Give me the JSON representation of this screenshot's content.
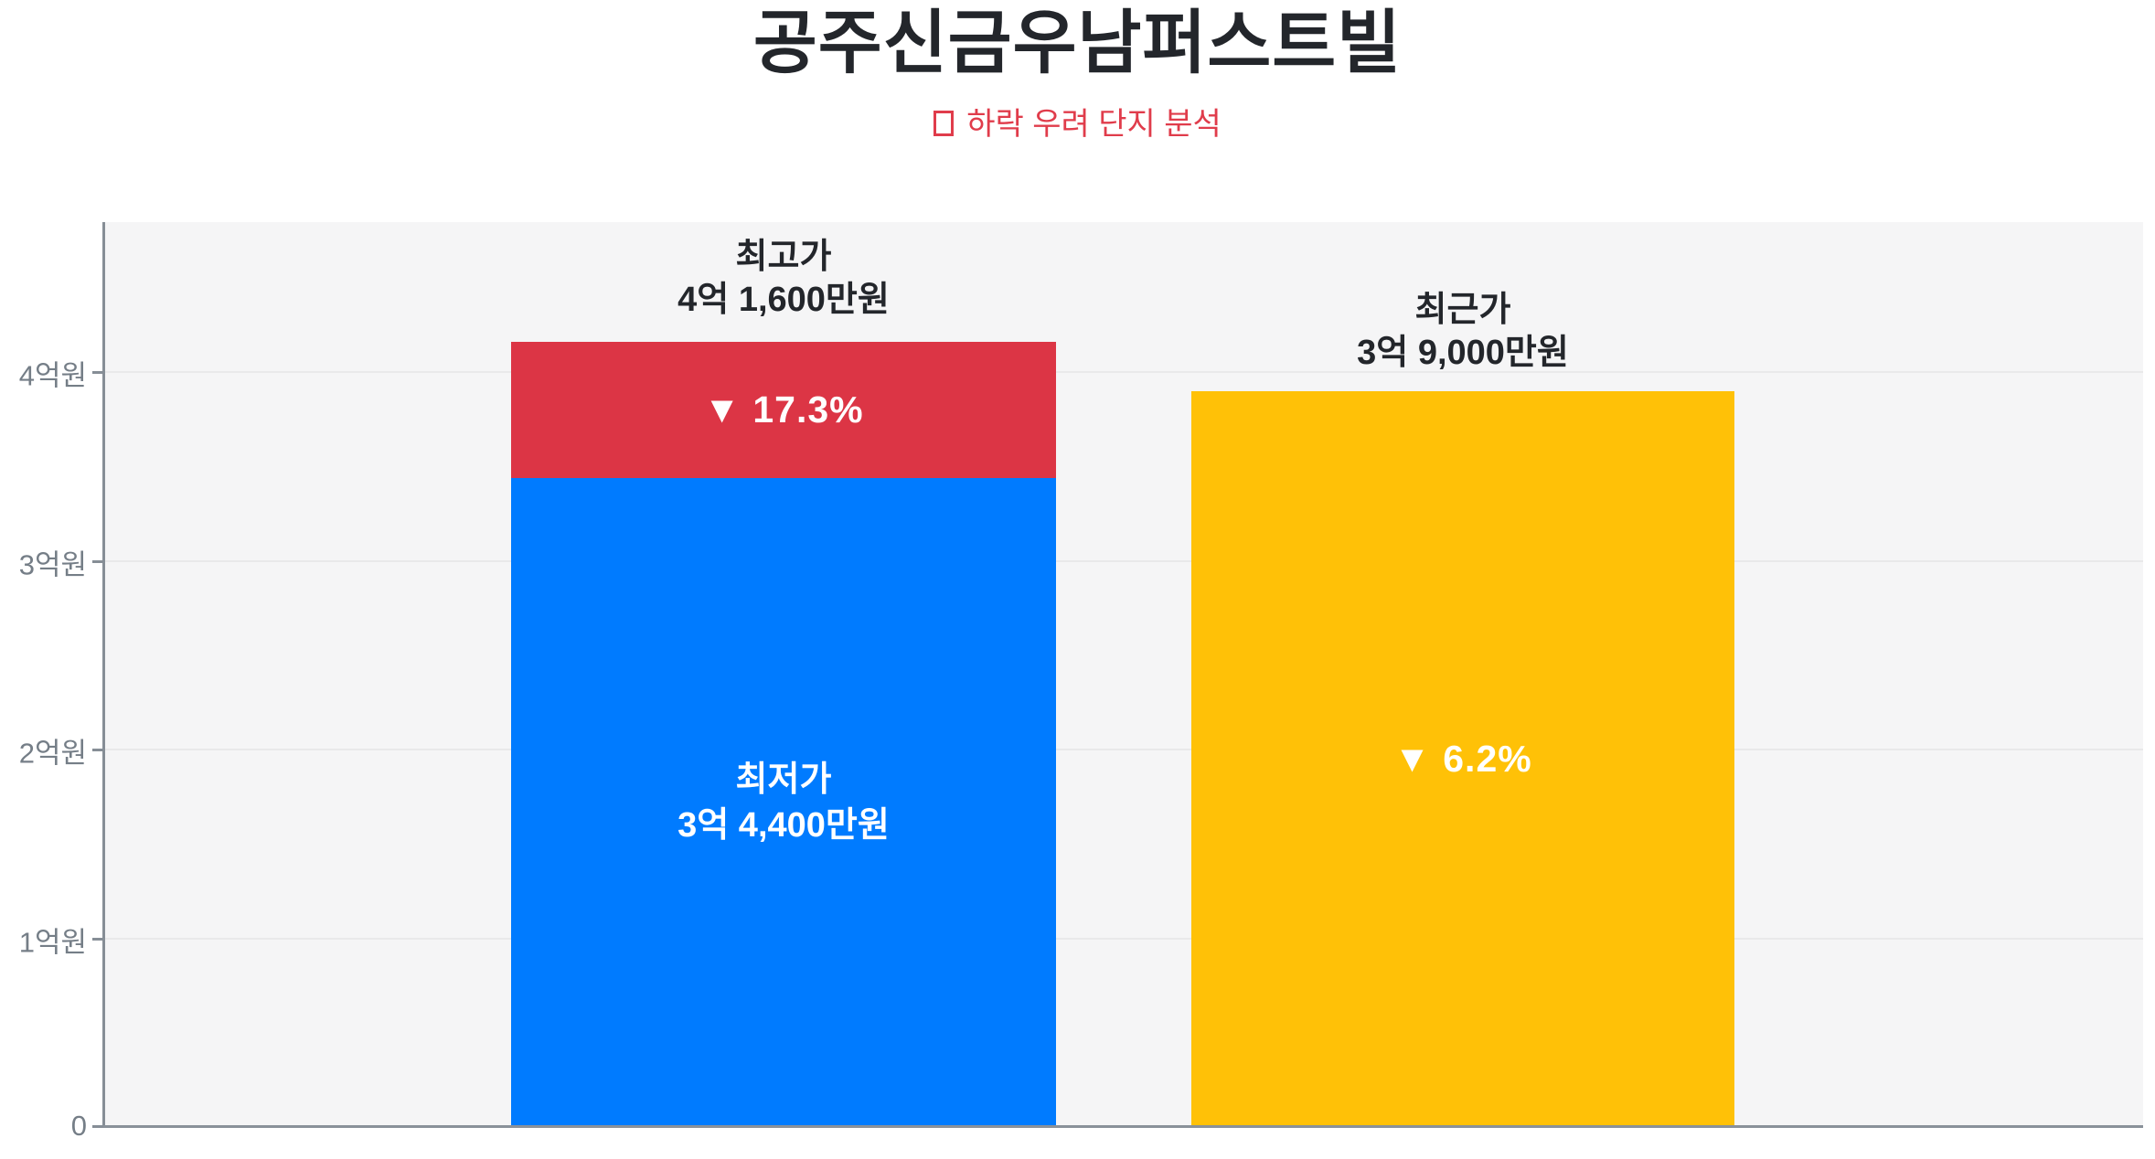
{
  "page": {
    "title": "공주신금우남퍼스트빌",
    "subtitle": "하락 우려 단지 분석",
    "icons": {
      "subtitle_marker": "red-outline-box (unrendered emoji glyph)"
    },
    "colors": {
      "title_text": "#23262b",
      "subtitle_red": "#e03c4b",
      "plot_background": "#f5f5f6",
      "axis_gray": "#868e96",
      "gridline_gray": "#e9e9ea",
      "ytick_text": "#757e87",
      "bar_blue": "#007bff",
      "bar_red": "#dc3545",
      "bar_yellow": "#ffc107",
      "bar_text": "#ffffff"
    }
  },
  "chart_data": {
    "type": "bar",
    "title": "공주신금우남퍼스트빌",
    "subtitle": "하락 우려 단지 분석",
    "ylabel": "",
    "ylim": [
      0,
      4.8
    ],
    "unit": "억원",
    "grid": "horizontal",
    "legend": "none",
    "yticks": [
      {
        "value": 0,
        "label": "0"
      },
      {
        "value": 1,
        "label": "1억원"
      },
      {
        "value": 2,
        "label": "2억원"
      },
      {
        "value": 3,
        "label": "3억원"
      },
      {
        "value": 4,
        "label": "4억원"
      }
    ],
    "bars": [
      {
        "annotation_title": "최고가",
        "annotation_value": "4억 1,600만원",
        "total_eok": 4.16,
        "segments": [
          {
            "label": "최저가",
            "value_label": "3억 4,400만원",
            "value_eok": 3.44,
            "color": "#007bff"
          },
          {
            "label": "▼ 17.3%",
            "value_eok": 0.72,
            "color": "#dc3545"
          }
        ]
      },
      {
        "annotation_title": "최근가",
        "annotation_value": "3억 9,000만원",
        "total_eok": 3.9,
        "segments": [
          {
            "label": "▼ 6.2%",
            "value_eok": 3.9,
            "color": "#ffc107"
          }
        ]
      }
    ]
  }
}
